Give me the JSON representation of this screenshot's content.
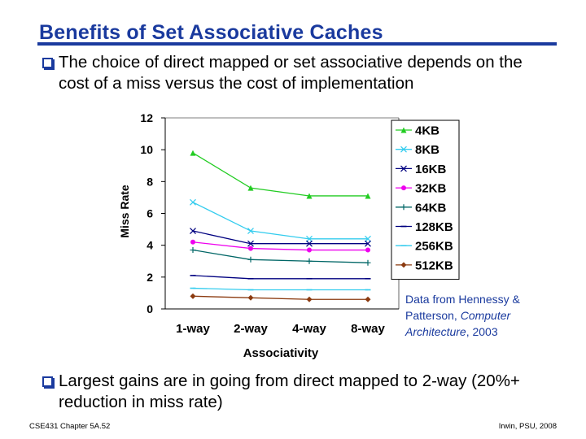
{
  "slide": {
    "title": "Benefits of Set Associative Caches",
    "bullet1": "The choice of direct mapped or set associative depends on the cost of a miss versus the cost of implementation",
    "bullet2": "Largest gains are in going from direct mapped to 2-way (20%+ reduction in miss rate)",
    "footer_left": "CSE431 Chapter 5A.52",
    "footer_right": "Irwin, PSU, 2008",
    "source_prefix": "Data from Hennessy & Patterson, ",
    "source_title": "Computer Architecture",
    "source_suffix": ", 2003"
  },
  "chart_data": {
    "type": "line",
    "categories": [
      "1-way",
      "2-way",
      "4-way",
      "8-way"
    ],
    "xlabel": "Associativity",
    "ylabel": "Miss Rate",
    "ylim": [
      0,
      12
    ],
    "yticks": [
      0,
      2,
      4,
      6,
      8,
      10,
      12
    ],
    "legend_position": "right",
    "series": [
      {
        "name": "4KB",
        "values": [
          9.8,
          7.6,
          7.1,
          7.1
        ],
        "color": "#22cc22",
        "marker": "triangle"
      },
      {
        "name": "8KB",
        "values": [
          6.7,
          4.9,
          4.4,
          4.4
        ],
        "color": "#33ccee",
        "marker": "x"
      },
      {
        "name": "16KB",
        "values": [
          4.9,
          4.1,
          4.1,
          4.1
        ],
        "color": "#000080",
        "marker": "x"
      },
      {
        "name": "32KB",
        "values": [
          4.2,
          3.8,
          3.7,
          3.7
        ],
        "color": "#ee00ee",
        "marker": "circle"
      },
      {
        "name": "64KB",
        "values": [
          3.7,
          3.1,
          3.0,
          2.9
        ],
        "color": "#006666",
        "marker": "plus"
      },
      {
        "name": "128KB",
        "values": [
          2.1,
          1.9,
          1.9,
          1.9
        ],
        "color": "#000080",
        "marker": "dash"
      },
      {
        "name": "256KB",
        "values": [
          1.3,
          1.2,
          1.2,
          1.2
        ],
        "color": "#33ccee",
        "marker": "dash"
      },
      {
        "name": "512KB",
        "values": [
          0.8,
          0.7,
          0.6,
          0.6
        ],
        "color": "#8b3a0f",
        "marker": "diamond"
      }
    ]
  }
}
